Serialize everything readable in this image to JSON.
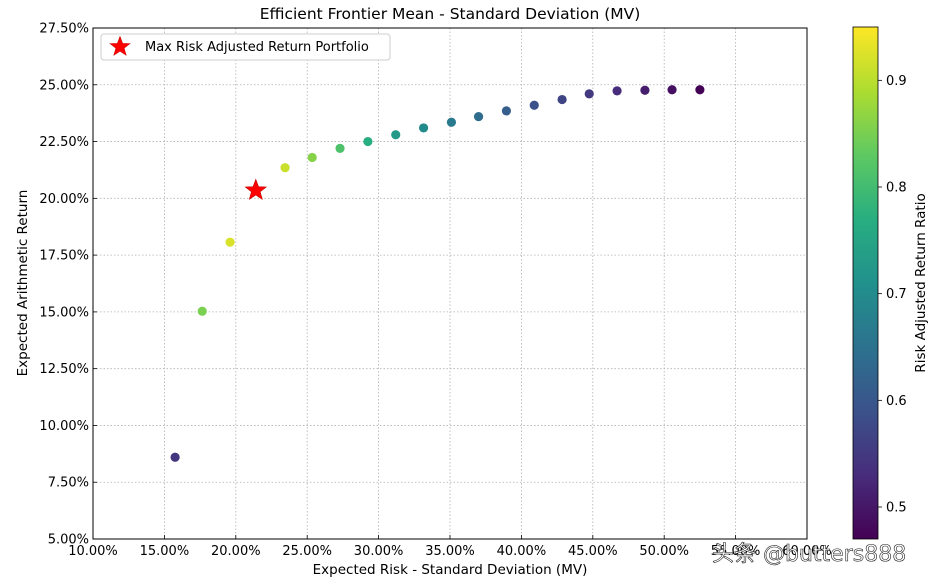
{
  "chart_data": {
    "type": "scatter",
    "title": "Efficient Frontier Mean - Standard Deviation (MV)",
    "xlabel": "Expected Risk - Standard Deviation (MV)",
    "ylabel": "Expected Arithmetic Return",
    "colorbar_label": "Risk Adjusted Return Ratio",
    "xlim": [
      0.1,
      0.6
    ],
    "ylim": [
      0.05,
      0.275
    ],
    "x_ticks": [
      0.1,
      0.15,
      0.2,
      0.25,
      0.3,
      0.35,
      0.4,
      0.45,
      0.5,
      0.55,
      0.6
    ],
    "x_tick_labels": [
      "10.00%",
      "15.00%",
      "20.00%",
      "25.00%",
      "30.00%",
      "35.00%",
      "40.00%",
      "45.00%",
      "50.00%",
      "55.00%",
      "60.00%"
    ],
    "y_ticks": [
      0.05,
      0.075,
      0.1,
      0.125,
      0.15,
      0.175,
      0.2,
      0.225,
      0.25,
      0.275
    ],
    "y_tick_labels": [
      "5.00%",
      "7.50%",
      "10.00%",
      "12.50%",
      "15.00%",
      "17.50%",
      "20.00%",
      "22.50%",
      "25.00%",
      "27.50%"
    ],
    "colorbar_range": [
      0.47,
      0.95
    ],
    "colorbar_ticks": [
      0.5,
      0.6,
      0.7,
      0.8,
      0.9
    ],
    "colorbar_tick_labels": [
      "0.5",
      "0.6",
      "0.7",
      "0.8",
      "0.9"
    ],
    "colormap": "viridis",
    "grid": true,
    "legend_position": "top-left",
    "legend": [
      {
        "label": "Max Risk Adjusted Return Portfolio",
        "marker": "star",
        "color": "#ff0000"
      }
    ],
    "points": [
      {
        "x": 0.1575,
        "y": 0.086,
        "ratio": 0.546
      },
      {
        "x": 0.1765,
        "y": 0.1503,
        "ratio": 0.851
      },
      {
        "x": 0.196,
        "y": 0.1807,
        "ratio": 0.922
      },
      {
        "x": 0.2345,
        "y": 0.2135,
        "ratio": 0.91
      },
      {
        "x": 0.2535,
        "y": 0.218,
        "ratio": 0.86
      },
      {
        "x": 0.273,
        "y": 0.222,
        "ratio": 0.813
      },
      {
        "x": 0.2925,
        "y": 0.225,
        "ratio": 0.769
      },
      {
        "x": 0.312,
        "y": 0.228,
        "ratio": 0.731
      },
      {
        "x": 0.3315,
        "y": 0.231,
        "ratio": 0.697
      },
      {
        "x": 0.351,
        "y": 0.2335,
        "ratio": 0.665
      },
      {
        "x": 0.37,
        "y": 0.236,
        "ratio": 0.638
      },
      {
        "x": 0.3895,
        "y": 0.2385,
        "ratio": 0.612
      },
      {
        "x": 0.409,
        "y": 0.241,
        "ratio": 0.589
      },
      {
        "x": 0.4285,
        "y": 0.2435,
        "ratio": 0.568
      },
      {
        "x": 0.4475,
        "y": 0.246,
        "ratio": 0.55
      },
      {
        "x": 0.467,
        "y": 0.2473,
        "ratio": 0.53
      },
      {
        "x": 0.4865,
        "y": 0.2476,
        "ratio": 0.509
      },
      {
        "x": 0.5055,
        "y": 0.2478,
        "ratio": 0.49
      },
      {
        "x": 0.525,
        "y": 0.2478,
        "ratio": 0.472
      }
    ],
    "max_point": {
      "x": 0.214,
      "y": 0.2035,
      "color": "#ff0000",
      "marker": "star"
    }
  },
  "watermark": "头条 @butters888"
}
